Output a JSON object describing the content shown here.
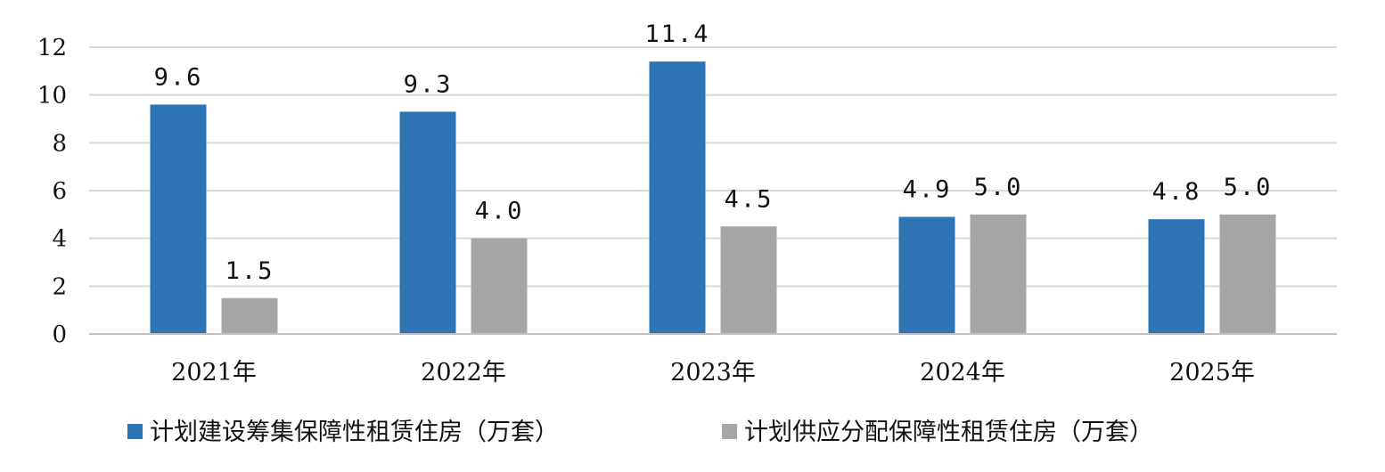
{
  "chart_data": {
    "type": "bar",
    "categories": [
      "2021年",
      "2022年",
      "2023年",
      "2024年",
      "2025年"
    ],
    "series": [
      {
        "name": "计划建设筹集保障性租赁住房（万套）",
        "color": "#2e75b6",
        "values": [
          9.6,
          9.3,
          11.4,
          4.9,
          4.8
        ],
        "labels": [
          "9.6",
          "9.3",
          "11.4",
          "4.9",
          "4.8"
        ]
      },
      {
        "name": "计划供应分配保障性租赁住房（万套）",
        "color": "#a6a6a6",
        "values": [
          1.5,
          4.0,
          4.5,
          5.0,
          5.0
        ],
        "labels": [
          "1.5",
          "4.0",
          "4.5",
          "5.0",
          "5.0"
        ]
      }
    ],
    "ylim": [
      0,
      12
    ],
    "yticks": [
      "0",
      "2",
      "4",
      "6",
      "8",
      "10",
      "12"
    ],
    "grid": true,
    "legend": "bottom"
  }
}
